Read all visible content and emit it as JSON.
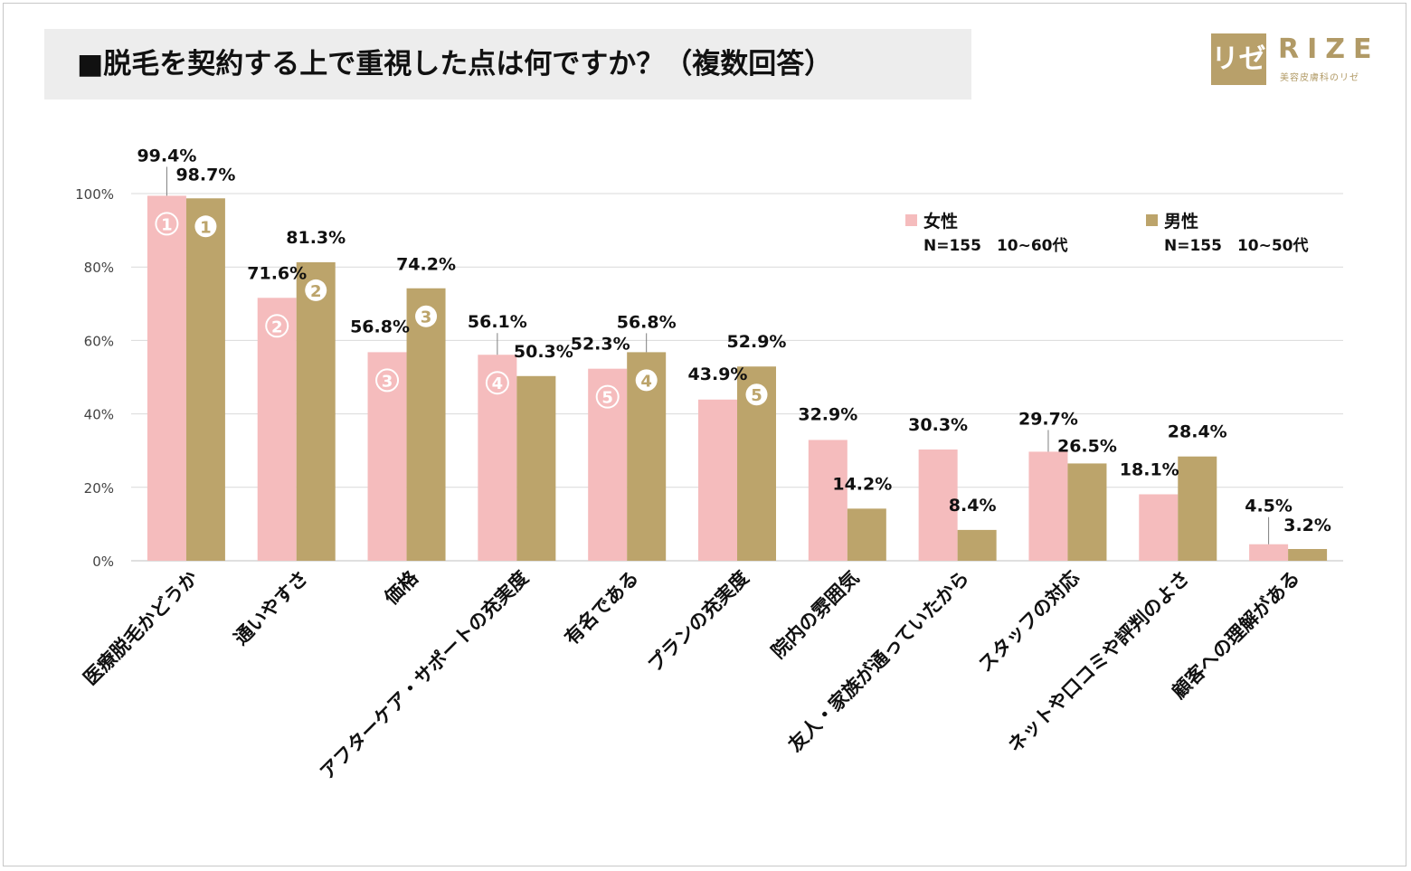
{
  "title": "■脱毛を契約する上で重視した点は何ですか？（複数回答）",
  "logo": {
    "mark": "リゼ",
    "word": "RIZE",
    "tagline": "美容皮膚科のリゼ"
  },
  "colors": {
    "female": "#f5bcbd",
    "male": "#bca46b",
    "grid": "#d9d9d9",
    "axis": "#bfbfbf"
  },
  "chart_data": {
    "type": "bar",
    "title": "■脱毛を契約する上で重視した点は何ですか？（複数回答）",
    "categories": [
      "医療脱毛かどうか",
      "通いやすさ",
      "価格",
      "アフターケア・サポートの充実度",
      "有名である",
      "プランの充実度",
      "院内の雰囲気",
      "友人・家族が通っていたから",
      "スタッフの対応",
      "ネットや口コミや評判のよさ",
      "顧客への理解がある"
    ],
    "series": [
      {
        "name": "女性",
        "sample": "N=155　10~60代",
        "values": [
          99.4,
          71.6,
          56.8,
          56.1,
          52.3,
          43.9,
          32.9,
          30.3,
          29.7,
          18.1,
          4.5
        ],
        "labels": [
          "99.4%",
          "71.6%",
          "56.8%",
          "56.1%",
          "52.3%",
          "43.9%",
          "32.9%",
          "30.3%",
          "29.7%",
          "18.1%",
          "4.5%"
        ],
        "ranks": [
          1,
          2,
          3,
          4,
          5,
          null,
          null,
          null,
          null,
          null,
          null
        ]
      },
      {
        "name": "男性",
        "sample": "N=155　10~50代",
        "values": [
          98.7,
          81.3,
          74.2,
          50.3,
          56.8,
          52.9,
          14.2,
          8.4,
          26.5,
          28.4,
          3.2
        ],
        "labels": [
          "98.7%",
          "81.3%",
          "74.2%",
          "50.3%",
          "56.8%",
          "52.9%",
          "14.2%",
          "8.4%",
          "26.5%",
          "28.4%",
          "3.2%"
        ],
        "ranks": [
          1,
          2,
          3,
          null,
          4,
          5,
          null,
          null,
          null,
          null,
          null
        ]
      }
    ],
    "ylim": [
      0,
      100
    ],
    "yticks": [
      "0%",
      "20%",
      "40%",
      "60%",
      "80%",
      "100%"
    ],
    "xlabel": "",
    "ylabel": "",
    "legend": "top-right"
  }
}
